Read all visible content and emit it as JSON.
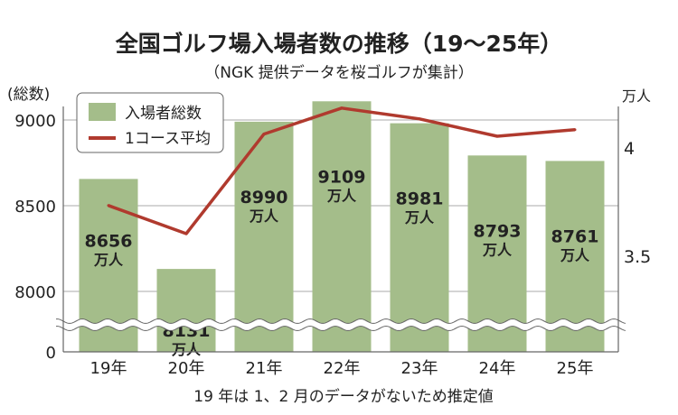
{
  "chart_data": {
    "type": "bar+line",
    "title": "全国ゴルフ場入場者数の推移（19〜25年）",
    "subtitle": "（NGK 提供データを桜ゴルフが集計）",
    "left_axis_label": "(総数)",
    "right_axis_label": "万人",
    "left_ticks": [
      "9000",
      "8500",
      "8000",
      "0"
    ],
    "right_ticks": [
      "4",
      "3.5"
    ],
    "left_axis_break": true,
    "grid": true,
    "legend_position": "top-left",
    "categories": [
      "19年",
      "20年",
      "21年",
      "22年",
      "23年",
      "24年",
      "25年"
    ],
    "series": [
      {
        "name": "入場者総数",
        "type": "bar",
        "axis": "left",
        "color": "#a4bd8a",
        "values": [
          8656,
          8131,
          8990,
          9109,
          8981,
          8793,
          8761
        ],
        "labels": [
          "8656",
          "8131",
          "8990",
          "9109",
          "8981",
          "8793",
          "8761"
        ],
        "label_unit": "万人"
      },
      {
        "name": "1コース平均",
        "type": "line",
        "axis": "right",
        "color": "#b03a2e",
        "values": [
          3.73,
          3.6,
          4.06,
          4.18,
          4.13,
          4.05,
          4.08
        ]
      }
    ],
    "footnote": "19 年は 1、2 月のデータがないため推定値"
  }
}
